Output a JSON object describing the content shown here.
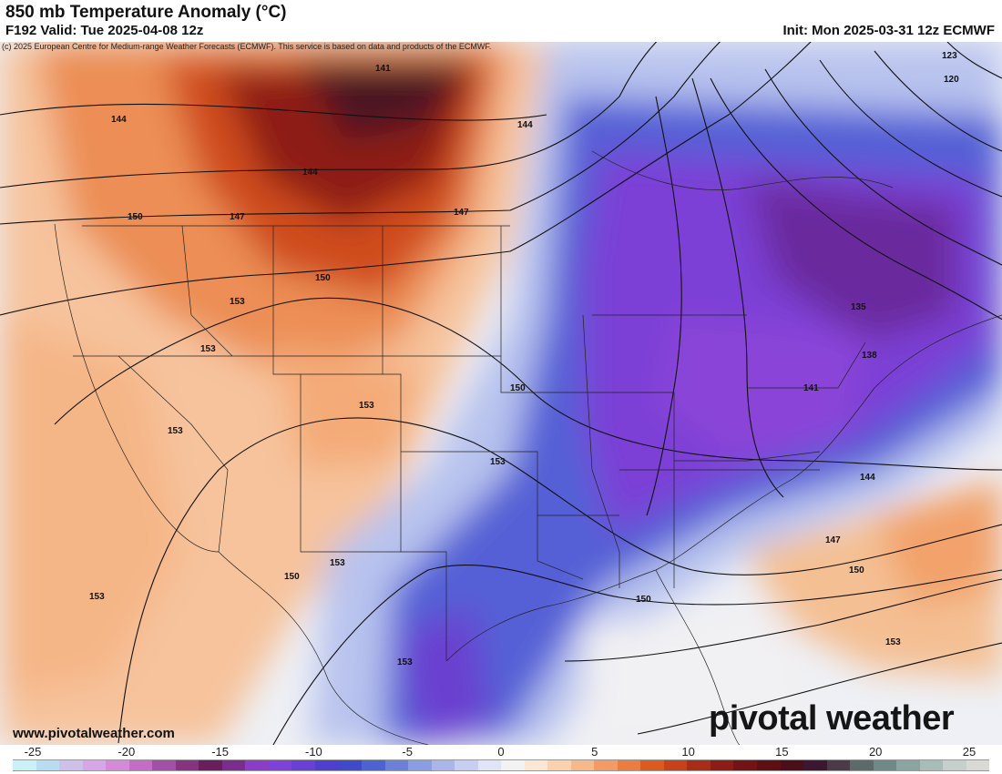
{
  "header": {
    "title": "850 mb Temperature Anomaly (°C)",
    "valid": "F192 Valid: Tue 2025-04-08 12z",
    "init": "Init: Mon 2025-03-31 12z ECMWF",
    "copyright": "(c) 2025 European Centre for Medium-range Weather Forecasts (ECMWF). This service is based on data and products of the ECMWF."
  },
  "footer": {
    "website": "www.pivotalweather.com",
    "brand": "pivotal weather"
  },
  "contour_labels": [
    "141",
    "144",
    "144",
    "144",
    "147",
    "147",
    "150",
    "150",
    "153",
    "153",
    "153",
    "153",
    "153",
    "150",
    "150",
    "147",
    "144",
    "141",
    "138",
    "135",
    "123",
    "120",
    "153",
    "153",
    "150",
    "153",
    "153",
    "150"
  ],
  "colorbar": {
    "ticks": [
      "-25",
      "-20",
      "-15",
      "-10",
      "-5",
      "0",
      "5",
      "10",
      "15",
      "20",
      "25"
    ],
    "colors": [
      "#c8f2f7",
      "#b8dcf0",
      "#cfc0ea",
      "#d6a6e8",
      "#d58ad8",
      "#c46cc6",
      "#a24fa8",
      "#86347f",
      "#6a1f5c",
      "#7b2d8e",
      "#8a3ec8",
      "#7f42d9",
      "#6a3fd6",
      "#4e3fcf",
      "#3f49c9",
      "#4d63d2",
      "#6a80db",
      "#8b9de3",
      "#aab6ea",
      "#c6cff1",
      "#dfe5f6",
      "#f2f2f2",
      "#fde7d2",
      "#fbd1ae",
      "#f7b98a",
      "#f29c63",
      "#ec7c3f",
      "#dd5a1f",
      "#c7411a",
      "#a92c16",
      "#8e1c16",
      "#741313",
      "#5c1013",
      "#4b0f1a",
      "#3c1830",
      "#4b3a48",
      "#5c6a6a",
      "#6f8a86",
      "#8aa5a0",
      "#a9bdb8",
      "#c5d0cc",
      "#d9dad6"
    ]
  }
}
